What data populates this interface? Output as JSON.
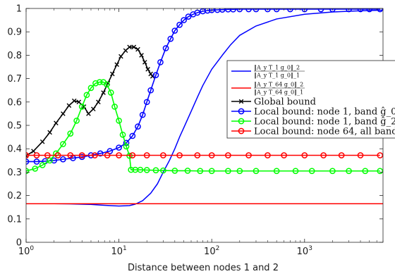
{
  "chart_data": {
    "type": "line",
    "title": "",
    "xlabel": "Distance between nodes 1 and 2",
    "ylabel": "",
    "xscale": "log",
    "xlim": [
      1,
      7000
    ],
    "ylim": [
      0,
      1
    ],
    "grid": false,
    "legend_position": "right",
    "x_ticks": [
      {
        "value": 1,
        "label": "10^0"
      },
      {
        "value": 10,
        "label": "10^1"
      },
      {
        "value": 100,
        "label": "10^2"
      },
      {
        "value": 1000,
        "label": "10^3"
      }
    ],
    "y_ticks": [
      0,
      0.1,
      0.2,
      0.3,
      0.4,
      0.5,
      0.6,
      0.7,
      0.8,
      0.9,
      1
    ],
    "y_tick_labels": [
      "0",
      "0.1",
      "0.2",
      "0.3",
      "0.4",
      "0.5",
      "0.6",
      "0.7",
      "0.8",
      "0.9",
      "1"
    ],
    "series": [
      {
        "name": "‖A_y T_1 g_0‖_2 / ‖A_y T_1 g_0‖_1",
        "color": "#0000ff",
        "marker": "none",
        "x": [
          1,
          2,
          3,
          5,
          7,
          10,
          13,
          15,
          18,
          22,
          26,
          30,
          35,
          40,
          45,
          50,
          60,
          70,
          80,
          100,
          130,
          160,
          200,
          300,
          500,
          1000,
          2000,
          4000,
          7000
        ],
        "y": [
          0.165,
          0.165,
          0.164,
          0.162,
          0.158,
          0.155,
          0.157,
          0.163,
          0.178,
          0.21,
          0.25,
          0.3,
          0.35,
          0.4,
          0.45,
          0.49,
          0.56,
          0.62,
          0.67,
          0.74,
          0.8,
          0.845,
          0.885,
          0.925,
          0.955,
          0.975,
          0.985,
          0.99,
          0.993
        ]
      },
      {
        "name": "‖A_y T_64 g_0‖_2 / ‖A_y T_64 g_0‖_1",
        "color": "#ff0000",
        "marker": "none",
        "x": [
          1,
          7000
        ],
        "y": [
          0.165,
          0.165
        ]
      },
      {
        "name": "Global bound",
        "color": "#000000",
        "marker": "x",
        "x": [
          1,
          1.2,
          1.5,
          1.8,
          2.1,
          2.5,
          2.9,
          3.3,
          3.7,
          4.2,
          4.7,
          5.3,
          6,
          6.8,
          7.6,
          8.5,
          9.5,
          10.5,
          11.8,
          13,
          14.5,
          16,
          17.5,
          19,
          20.5,
          22,
          23
        ],
        "y": [
          0.37,
          0.39,
          0.43,
          0.47,
          0.51,
          0.55,
          0.585,
          0.605,
          0.6,
          0.58,
          0.55,
          0.57,
          0.6,
          0.64,
          0.68,
          0.72,
          0.76,
          0.795,
          0.82,
          0.835,
          0.835,
          0.825,
          0.8,
          0.77,
          0.74,
          0.72,
          0.71
        ]
      },
      {
        "name": "Local bound: node 1, band ĝ_0",
        "color": "#0000ff",
        "marker": "o",
        "x": [
          1,
          1.3,
          1.6,
          2,
          2.5,
          3.2,
          4,
          5,
          6.3,
          8,
          10,
          12,
          14,
          16,
          18,
          20,
          22,
          25,
          28,
          32,
          36,
          40,
          45,
          50,
          56,
          63,
          70,
          80,
          90,
          100,
          115,
          130,
          150,
          170,
          200,
          250,
          300,
          400,
          500,
          700,
          1000,
          1500,
          2000,
          3000,
          4000,
          5000,
          6500
        ],
        "y": [
          0.345,
          0.345,
          0.347,
          0.35,
          0.355,
          0.36,
          0.365,
          0.372,
          0.38,
          0.39,
          0.405,
          0.425,
          0.455,
          0.495,
          0.545,
          0.6,
          0.65,
          0.715,
          0.77,
          0.83,
          0.87,
          0.905,
          0.93,
          0.95,
          0.965,
          0.975,
          0.982,
          0.988,
          0.991,
          0.993,
          0.994,
          0.995,
          0.996,
          0.996,
          0.997,
          0.997,
          0.997,
          0.997,
          0.997,
          0.997,
          0.997,
          0.997,
          0.997,
          0.997,
          0.997,
          0.997,
          0.997
        ]
      },
      {
        "name": "Local bound: node 1, band ĝ_2",
        "color": "#00ff00",
        "marker": "o",
        "x": [
          1,
          1.25,
          1.5,
          1.8,
          2.1,
          2.5,
          3,
          3.5,
          4,
          4.5,
          5,
          5.6,
          6.2,
          6.8,
          7.4,
          8.2,
          9,
          10,
          11,
          12,
          13,
          13.5,
          15,
          17,
          20,
          25,
          30,
          40,
          55,
          75,
          100,
          150,
          200,
          300,
          500,
          800,
          1200,
          2000,
          3000,
          4500,
          6500
        ],
        "y": [
          0.305,
          0.315,
          0.33,
          0.35,
          0.38,
          0.42,
          0.465,
          0.52,
          0.58,
          0.63,
          0.66,
          0.68,
          0.685,
          0.685,
          0.675,
          0.64,
          0.58,
          0.52,
          0.46,
          0.41,
          0.37,
          0.31,
          0.31,
          0.31,
          0.309,
          0.308,
          0.307,
          0.306,
          0.306,
          0.305,
          0.305,
          0.305,
          0.305,
          0.305,
          0.305,
          0.305,
          0.305,
          0.305,
          0.305,
          0.305,
          0.305
        ]
      },
      {
        "name": "Local bound: node 64, all bands",
        "color": "#ff0000",
        "marker": "o",
        "x": [
          1,
          1.3,
          1.7,
          2.2,
          3,
          4,
          5.5,
          7.5,
          10,
          14,
          20,
          30,
          45,
          70,
          100,
          150,
          250,
          400,
          600,
          1000,
          1600,
          2500,
          4000,
          6500
        ],
        "y": [
          0.372,
          0.372,
          0.372,
          0.372,
          0.372,
          0.372,
          0.372,
          0.372,
          0.372,
          0.372,
          0.372,
          0.372,
          0.372,
          0.372,
          0.372,
          0.372,
          0.372,
          0.372,
          0.372,
          0.372,
          0.372,
          0.372,
          0.372,
          0.372
        ]
      }
    ]
  }
}
